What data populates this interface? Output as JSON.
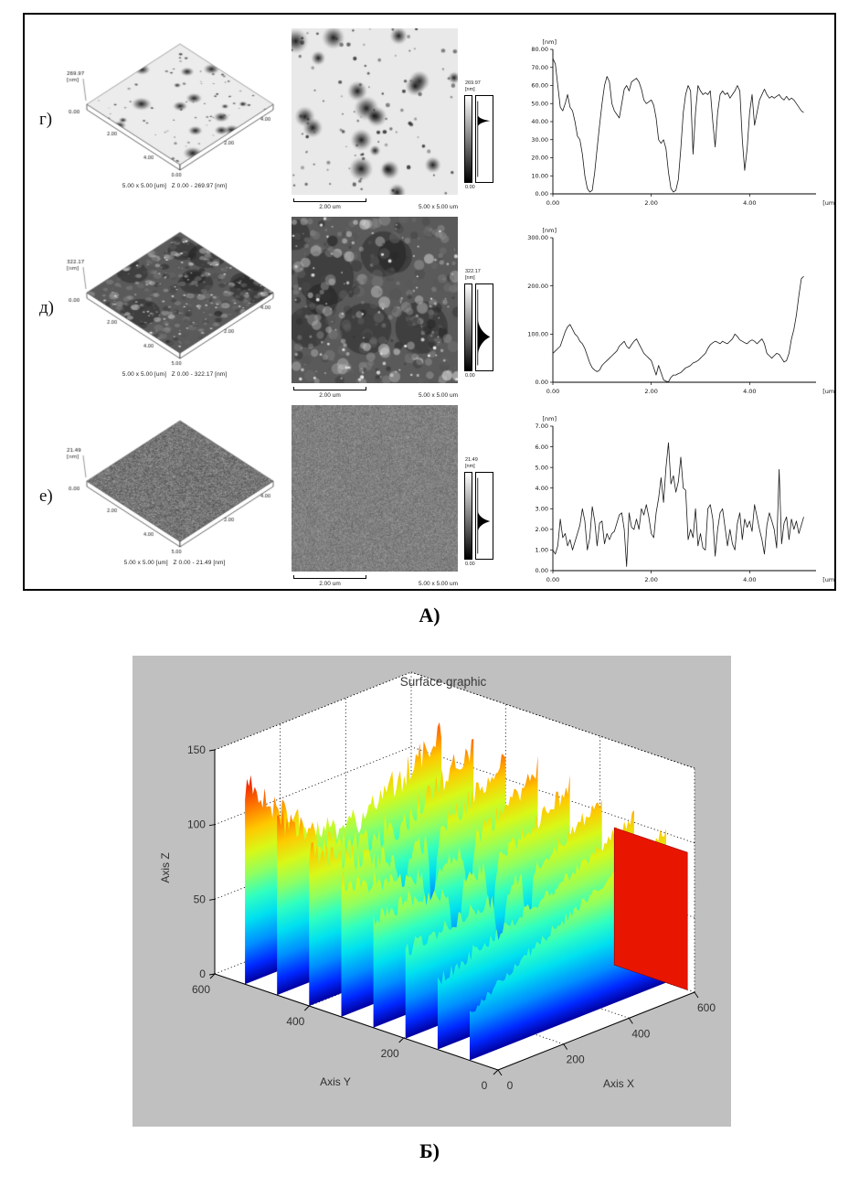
{
  "figure": {
    "panel_a_label": "А)",
    "panel_b_label": "Б)"
  },
  "panel_a": {
    "rows": [
      {
        "row_label": "г)",
        "surface3d": {
          "z_top": "269.97",
          "z_unit": "[nm]",
          "z_bottom": "0.00",
          "corner_label": "0.00",
          "edge_ticks": [
            "2.00",
            "4.00"
          ],
          "caption": "5.00 x 5.00 [um]   Z 0.00 - 269.97 [nm]"
        },
        "image2d": {
          "scalebar_label": "2.00 um",
          "size_label": "5.00 x 5.00 um"
        },
        "colorbar": {
          "top_value": "269.97",
          "unit": "[nm]",
          "bottom_value": "0.00",
          "hist_peak": 0.27,
          "hist_spread": 0.05
        }
      },
      {
        "row_label": "д)",
        "surface3d": {
          "z_top": "322.17",
          "z_unit": "[nm]",
          "z_bottom": "0.00",
          "corner_label": "5.00",
          "edge_ticks": [
            "2.00",
            "4.00"
          ],
          "caption": "5.00 x 5.00 [um]   Z 0.00 - 322.17 [nm]"
        },
        "image2d": {
          "scalebar_label": "2.00 um",
          "size_label": "5.00 x 5.00 um"
        },
        "colorbar": {
          "top_value": "322.17",
          "unit": "[nm]",
          "bottom_value": "0.00",
          "hist_peak": 0.62,
          "hist_spread": 0.16
        }
      },
      {
        "row_label": "е)",
        "surface3d": {
          "z_top": "21.49",
          "z_unit": "[nm]",
          "z_bottom": "0.00",
          "corner_label": "5.00",
          "edge_ticks": [
            "2.00",
            "4.00"
          ],
          "caption": "5.00 x 5.00 [um]   Z 0.00 - 21.49 [nm]"
        },
        "image2d": {
          "scalebar_label": "2.00 um",
          "size_label": "5.00 x 5.00 um"
        },
        "colorbar": {
          "top_value": "21.49",
          "unit": "[nm]",
          "bottom_value": "0.00",
          "hist_peak": 0.57,
          "hist_spread": 0.09
        }
      }
    ]
  },
  "panel_b": {
    "title": "Surface graphic",
    "xlabel": "Axis X",
    "ylabel": "Axis Y",
    "zlabel": "Axis Z",
    "background": "#c0c0c0"
  },
  "chart_data": [
    {
      "id": "profile-g",
      "type": "line",
      "row": "г)",
      "xlabel": "[um]",
      "ylabel": "[nm]",
      "xlim": [
        0,
        5.35
      ],
      "ylim": [
        0,
        80
      ],
      "ytick_step": 10,
      "xticks": [
        0,
        2,
        4
      ],
      "x_start": 0,
      "x_step": 0.05,
      "grid": false,
      "y": [
        75,
        72,
        60,
        48,
        46,
        50,
        55,
        48,
        46,
        40,
        32,
        30,
        22,
        10,
        3,
        1,
        2,
        12,
        25,
        38,
        50,
        60,
        65,
        62,
        50,
        46,
        44,
        42,
        50,
        58,
        60,
        57,
        62,
        63,
        64,
        62,
        58,
        52,
        50,
        51,
        52,
        49,
        42,
        30,
        28,
        30,
        25,
        12,
        3,
        1,
        2,
        8,
        25,
        45,
        55,
        60,
        57,
        22,
        45,
        60,
        57,
        55,
        56,
        55,
        57,
        40,
        26,
        45,
        55,
        57,
        55,
        56,
        53,
        55,
        57,
        60,
        57,
        30,
        13,
        25,
        45,
        55,
        38,
        45,
        52,
        55,
        58,
        55,
        53,
        54,
        53,
        54,
        55,
        53,
        52,
        54,
        52,
        53,
        52,
        50,
        48,
        46,
        45
      ]
    },
    {
      "id": "profile-d",
      "type": "line",
      "row": "д)",
      "xlabel": "[um]",
      "ylabel": "[nm]",
      "xlim": [
        0,
        5.35
      ],
      "ylim": [
        0,
        300
      ],
      "ytick_step": 100,
      "xticks": [
        0,
        2,
        4
      ],
      "x_start": 0,
      "x_step": 0.05,
      "grid": false,
      "y": [
        60,
        65,
        70,
        75,
        90,
        105,
        115,
        120,
        110,
        100,
        95,
        85,
        80,
        70,
        55,
        40,
        30,
        25,
        22,
        25,
        35,
        40,
        45,
        50,
        55,
        60,
        65,
        75,
        80,
        85,
        75,
        70,
        78,
        85,
        90,
        80,
        70,
        60,
        55,
        50,
        45,
        30,
        15,
        35,
        20,
        5,
        2,
        1,
        10,
        15,
        15,
        18,
        20,
        25,
        30,
        32,
        35,
        40,
        42,
        45,
        50,
        55,
        60,
        70,
        78,
        82,
        85,
        83,
        80,
        85,
        82,
        80,
        85,
        90,
        100,
        95,
        88,
        85,
        82,
        80,
        85,
        88,
        85,
        80,
        85,
        90,
        80,
        60,
        55,
        50,
        55,
        60,
        58,
        50,
        42,
        45,
        60,
        90,
        110,
        140,
        180,
        215,
        220
      ]
    },
    {
      "id": "profile-e",
      "type": "line",
      "row": "е)",
      "xlabel": "[um]",
      "ylabel": "[nm]",
      "xlim": [
        0,
        5.35
      ],
      "ylim": [
        0,
        7
      ],
      "ytick_step": 1,
      "xticks": [
        0,
        2,
        4
      ],
      "x_start": 0,
      "x_step": 0.05,
      "grid": false,
      "y": [
        1.0,
        0.8,
        1.2,
        2.5,
        1.6,
        1.8,
        1.2,
        1.5,
        1.0,
        1.4,
        1.8,
        2.2,
        3.0,
        2.4,
        1.0,
        1.6,
        3.1,
        2.4,
        1.2,
        2.3,
        2.4,
        1.3,
        1.8,
        1.5,
        1.8,
        1.9,
        2.3,
        2.7,
        2.8,
        2.0,
        0.2,
        2.8,
        2.1,
        2.0,
        2.5,
        2.0,
        3.0,
        2.7,
        3.2,
        2.6,
        1.8,
        1.6,
        2.8,
        3.5,
        4.5,
        3.3,
        5.0,
        6.2,
        4.2,
        4.6,
        3.8,
        4.3,
        5.5,
        4.0,
        3.9,
        1.5,
        2.0,
        1.6,
        3.0,
        1.2,
        1.8,
        1.1,
        1.0,
        3.0,
        3.2,
        2.5,
        0.7,
        2.0,
        2.8,
        3.0,
        2.1,
        1.2,
        2.0,
        1.3,
        1.0,
        2.3,
        2.8,
        1.5,
        2.5,
        2.1,
        2.4,
        1.9,
        3.2,
        2.6,
        2.0,
        1.5,
        0.8,
        2.2,
        2.8,
        2.4,
        2.0,
        1.1,
        4.9,
        1.3,
        2.3,
        2.6,
        1.5,
        2.5,
        2.0,
        2.4,
        1.8,
        2.2,
        2.6
      ]
    },
    {
      "id": "surface-b",
      "type": "surface",
      "title": "Surface graphic",
      "xlabel": "Axis X",
      "ylabel": "Axis Y",
      "zlabel": "Axis Z",
      "xlim": [
        0,
        600
      ],
      "ylim": [
        0,
        600
      ],
      "zlim": [
        0,
        150
      ],
      "xticks": [
        0,
        200,
        400,
        600
      ],
      "yticks": [
        0,
        200,
        400,
        600
      ],
      "zticks": [
        0,
        50,
        100,
        150
      ],
      "ridge_count": 8,
      "ridge_top_range": [
        95,
        140
      ],
      "front_min_height": 30,
      "colormap": "jet",
      "grid": "dotted"
    }
  ]
}
